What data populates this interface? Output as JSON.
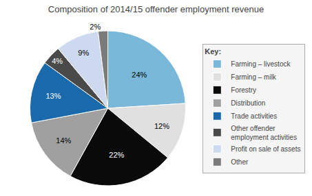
{
  "chart_data": {
    "type": "pie",
    "title": "Composition of 2014/15 offender employment revenue",
    "categories": [
      "Farming – livestock",
      "Farming – milk",
      "Forestry",
      "Distribution",
      "Trade activities",
      "Other offender\nemployment activities",
      "Profit on sale of assets",
      "Other"
    ],
    "values": [
      24,
      12,
      22,
      14,
      13,
      4,
      9,
      2
    ],
    "value_labels": [
      "24%",
      "12%",
      "22%",
      "14%",
      "13%",
      "4%",
      "9%",
      "2%"
    ],
    "colors": [
      "#7ab8d9",
      "#e0e0e0",
      "#0a0a0a",
      "#a0a0a0",
      "#1a6aab",
      "#4a4a4a",
      "#ccd9ee",
      "#7a7a7a"
    ],
    "data_labels": true,
    "legend": "right",
    "legend_title": "Key:"
  }
}
